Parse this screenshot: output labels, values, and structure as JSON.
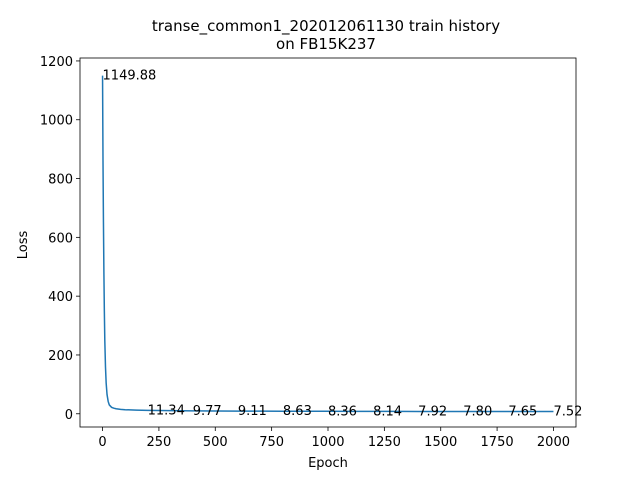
{
  "chart_data": {
    "type": "line",
    "title_line1": "transe_common1_202012061130 train history",
    "title_line2": "on FB15K237",
    "xlabel": "Epoch",
    "ylabel": "Loss",
    "xlim": [
      -100,
      2100
    ],
    "ylim": [
      -45,
      1210
    ],
    "x_ticks": [
      0,
      250,
      500,
      750,
      1000,
      1250,
      1500,
      1750,
      2000
    ],
    "y_ticks": [
      0,
      200,
      400,
      600,
      800,
      1000,
      1200
    ],
    "x_tick_labels": [
      "0",
      "250",
      "500",
      "750",
      "1000",
      "1250",
      "1500",
      "1750",
      "2000"
    ],
    "y_tick_labels": [
      "0",
      "200",
      "400",
      "600",
      "800",
      "1000",
      "1200"
    ],
    "line_color": "#1f77b4",
    "grid": false,
    "series": [
      {
        "x": [
          0,
          2,
          4,
          6,
          8,
          10,
          13,
          16,
          20,
          25,
          30,
          40,
          50,
          60,
          80,
          100,
          150,
          200,
          300,
          400,
          500,
          600,
          700,
          800,
          900,
          1000,
          1100,
          1200,
          1300,
          1400,
          1500,
          1600,
          1700,
          1800,
          1900,
          2000
        ],
        "y": [
          1149.88,
          860,
          650,
          480,
          350,
          250,
          160,
          105,
          65,
          42,
          30,
          22,
          19,
          17,
          15,
          13.8,
          12.3,
          11.34,
          10.5,
          9.77,
          9.4,
          9.11,
          8.85,
          8.63,
          8.5,
          8.36,
          8.25,
          8.14,
          8.03,
          7.92,
          7.86,
          7.8,
          7.72,
          7.65,
          7.58,
          7.52
        ]
      }
    ],
    "annotations": [
      {
        "x": 0,
        "y": 1149.88,
        "text": "1149.88"
      },
      {
        "x": 200,
        "y": 11.34,
        "text": "11.34"
      },
      {
        "x": 400,
        "y": 9.77,
        "text": "9.77"
      },
      {
        "x": 600,
        "y": 9.11,
        "text": "9.11"
      },
      {
        "x": 800,
        "y": 8.63,
        "text": "8.63"
      },
      {
        "x": 1000,
        "y": 8.36,
        "text": "8.36"
      },
      {
        "x": 1200,
        "y": 8.14,
        "text": "8.14"
      },
      {
        "x": 1400,
        "y": 7.92,
        "text": "7.92"
      },
      {
        "x": 1600,
        "y": 7.8,
        "text": "7.80"
      },
      {
        "x": 1800,
        "y": 7.65,
        "text": "7.65"
      },
      {
        "x": 2000,
        "y": 7.52,
        "text": "7.52"
      }
    ]
  }
}
